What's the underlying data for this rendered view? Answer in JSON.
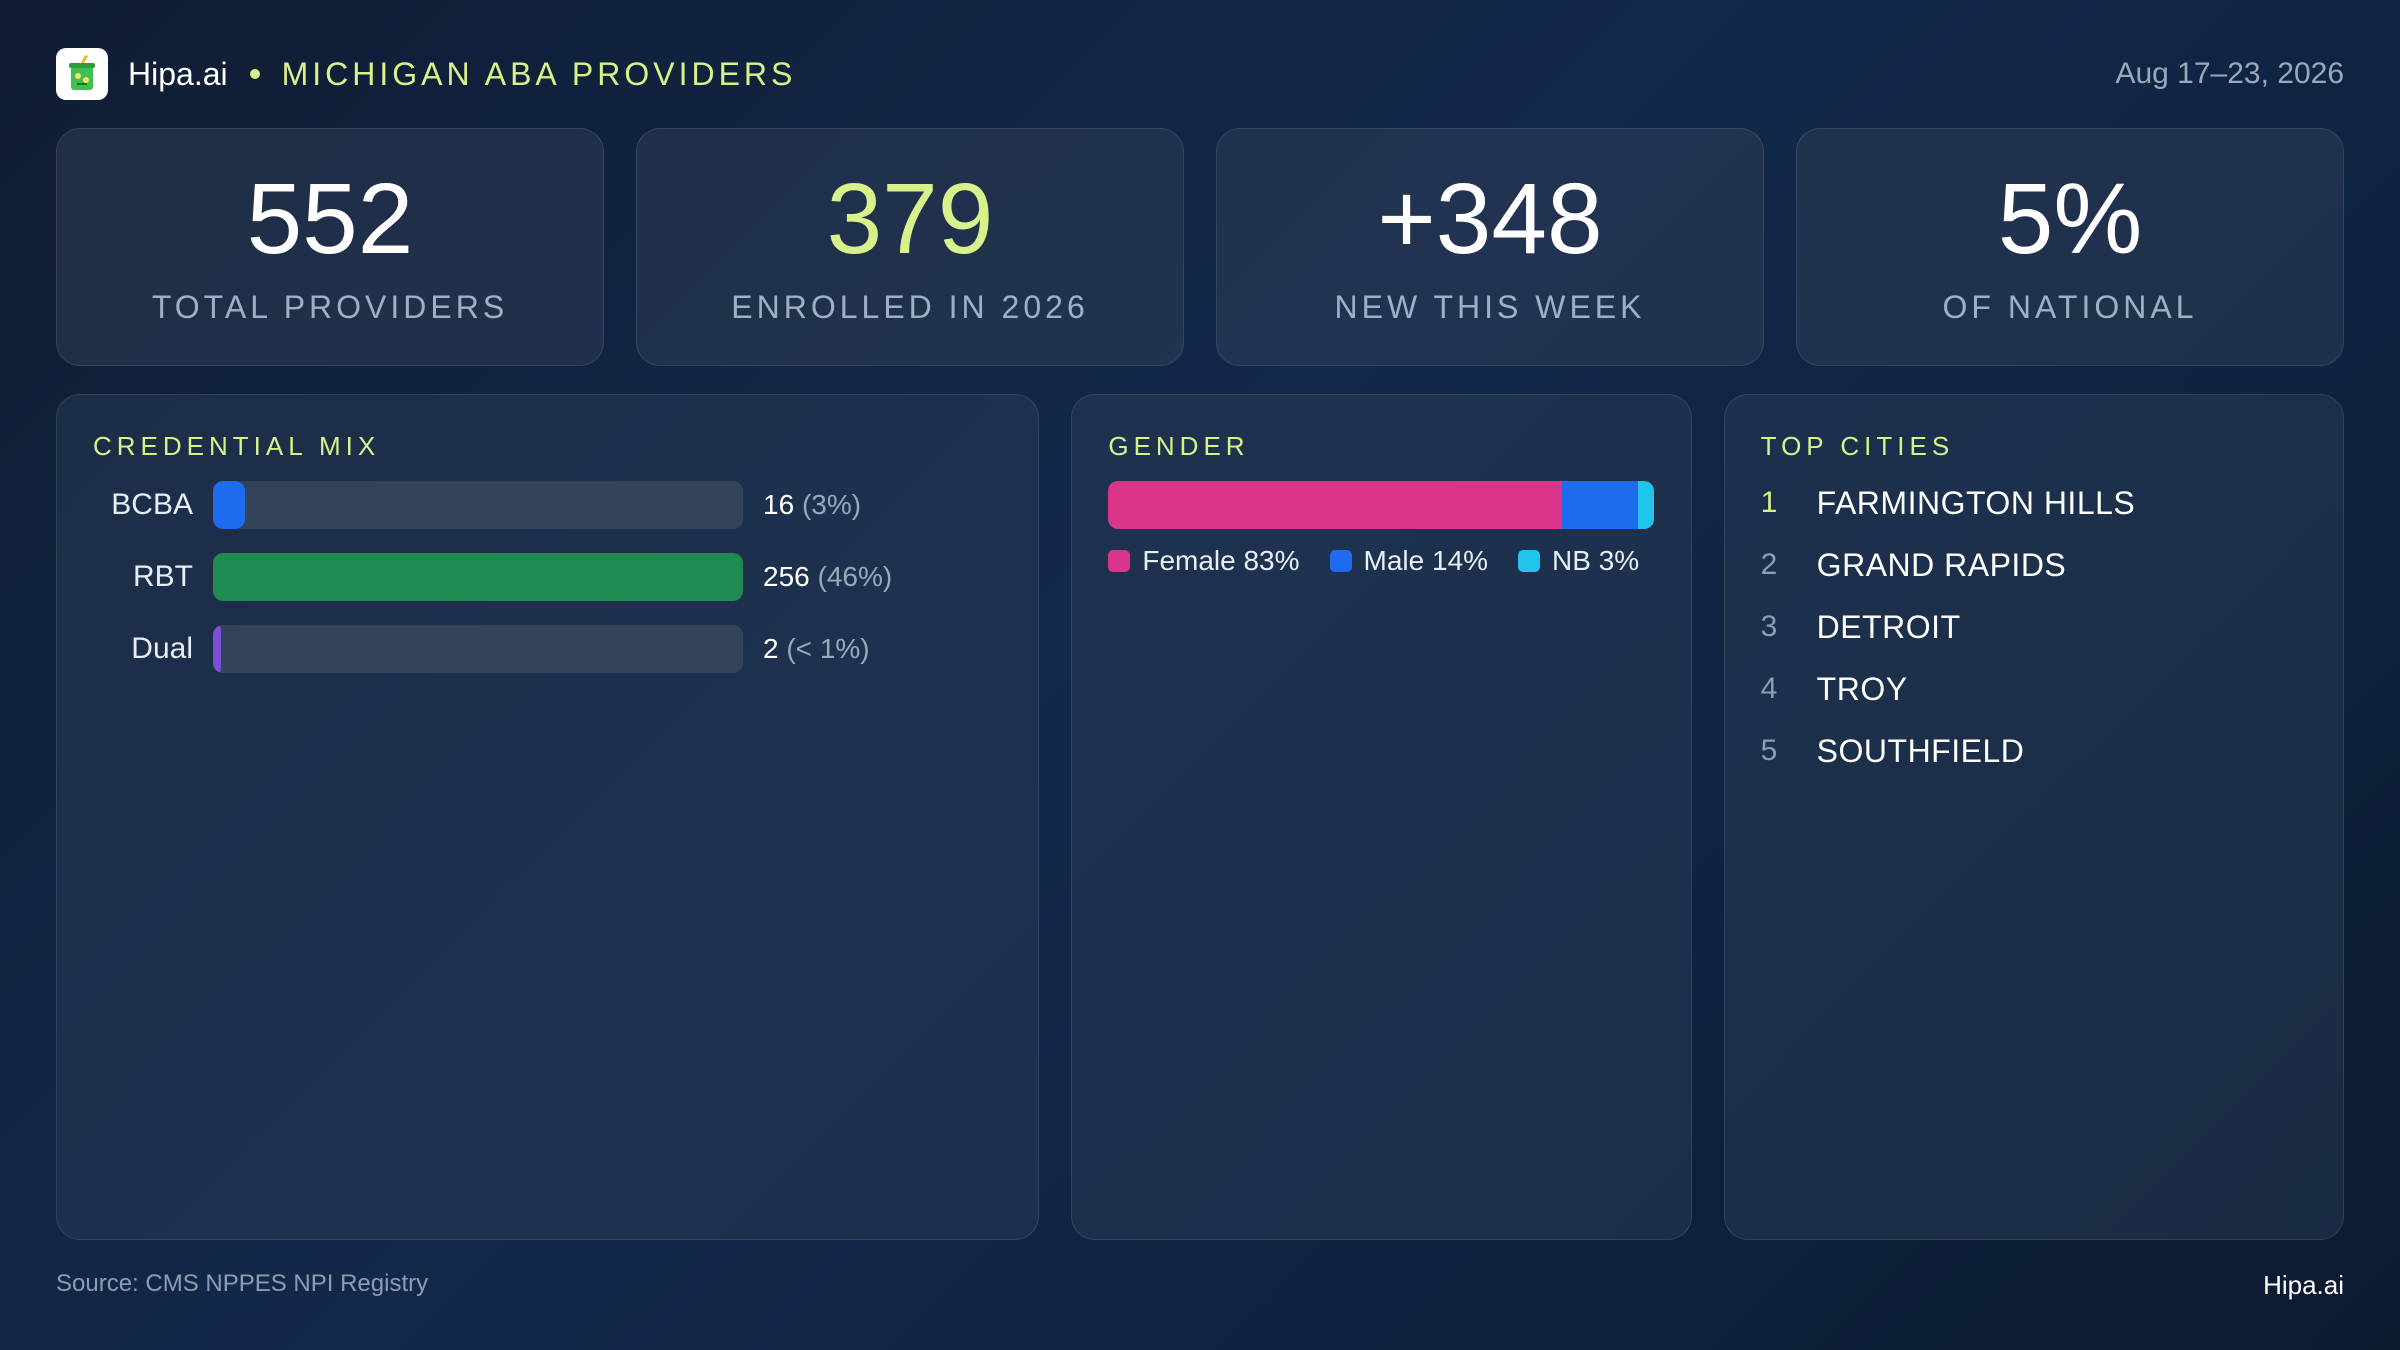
{
  "header": {
    "brand": "Hipa.ai",
    "title": "MICHIGAN ABA PROVIDERS",
    "date_range": "Aug 17–23, 2026",
    "logo_icon": "cup-icon"
  },
  "kpis": [
    {
      "value": "552",
      "label": "TOTAL PROVIDERS"
    },
    {
      "value": "379",
      "label": "ENROLLED IN 2026"
    },
    {
      "value": "+348",
      "label": "NEW THIS WEEK"
    },
    {
      "value": "5%",
      "label": "OF NATIONAL"
    }
  ],
  "credential_mix": {
    "title": "CREDENTIAL MIX",
    "rows": [
      {
        "label": "BCBA",
        "count": "16",
        "pct_text": "(3%)",
        "fraction": 0.06,
        "color": "#1e6bf0"
      },
      {
        "label": "RBT",
        "count": "256",
        "pct_text": "(46%)",
        "fraction": 1.0,
        "color": "#1f8a52"
      },
      {
        "label": "Dual",
        "count": "2",
        "pct_text": "(< 1%)",
        "fraction": 0.01,
        "color": "#7b4fd6"
      }
    ]
  },
  "gender": {
    "title": "GENDER",
    "segments": [
      {
        "label": "Female 83%",
        "percent": 83,
        "color": "#d9358a"
      },
      {
        "label": "Male 14%",
        "percent": 14,
        "color": "#1e6bf0"
      },
      {
        "label": "NB 3%",
        "percent": 3,
        "color": "#22c4ee"
      }
    ]
  },
  "top_cities": {
    "title": "TOP CITIES",
    "items": [
      {
        "rank": "1",
        "name": "FARMINGTON HILLS"
      },
      {
        "rank": "2",
        "name": "GRAND RAPIDS"
      },
      {
        "rank": "3",
        "name": "DETROIT"
      },
      {
        "rank": "4",
        "name": "TROY"
      },
      {
        "rank": "5",
        "name": "SOUTHFIELD"
      }
    ]
  },
  "footer": {
    "source": "Source: CMS NPPES NPI Registry",
    "brand": "Hipa.ai"
  },
  "colors": {
    "accent": "#d7f28a"
  }
}
